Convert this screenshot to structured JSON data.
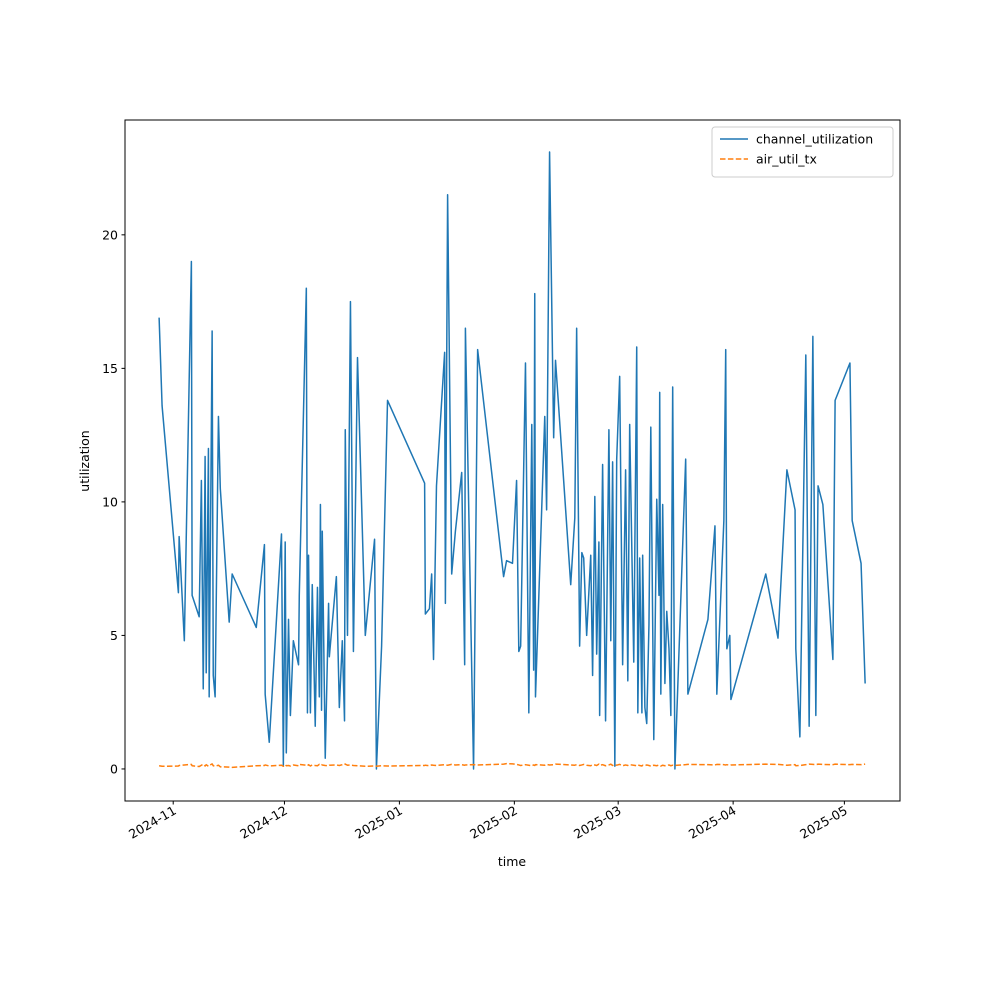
{
  "chart_data": {
    "type": "line",
    "x_label": "time",
    "y_label": "utilization",
    "x": [
      20024.2,
      20025.0,
      20029.4,
      20029.6,
      20031.0,
      20032.9,
      20033.1,
      20035.0,
      20035.6,
      20036.1,
      20036.6,
      20036.9,
      20037.5,
      20037.7,
      20038.5,
      20038.8,
      20039.3,
      20040.2,
      20040.7,
      20043.1,
      20043.9,
      20050.4,
      20052.6,
      20052.8,
      20053.9,
      20057.2,
      20057.7,
      20058.2,
      20058.5,
      20059.1,
      20059.6,
      20060.4,
      20061.8,
      20062.0,
      20063.9,
      20064.2,
      20064.5,
      20065.0,
      20065.5,
      20066.3,
      20066.9,
      20067.4,
      20067.7,
      20068.0,
      20068.2,
      20069.0,
      20069.9,
      20070.1,
      20072.0,
      20072.8,
      20073.6,
      20074.2,
      20074.4,
      20075.0,
      20075.8,
      20076.6,
      20077.7,
      20079.8,
      20082.3,
      20082.8,
      20084.2,
      20085.8,
      20095.8,
      20096.0,
      20097.1,
      20097.7,
      20098.2,
      20099.0,
      20101.2,
      20101.4,
      20102.0,
      20103.1,
      20104.1,
      20105.8,
      20106.6,
      20106.8,
      20109.0,
      20110.1,
      20117.1,
      20117.9,
      20119.5,
      20120.6,
      20121.2,
      20121.7,
      20123.0,
      20123.9,
      20124.7,
      20125.2,
      20125.5,
      20125.7,
      20128.2,
      20128.7,
      20129.5,
      20130.6,
      20131.1,
      20135.2,
      20136.3,
      20136.8,
      20137.6,
      20138.2,
      20138.7,
      20139.5,
      20140.6,
      20141.1,
      20141.7,
      20142.2,
      20142.8,
      20143.0,
      20143.8,
      20144.6,
      20145.5,
      20146.0,
      20146.5,
      20147.1,
      20147.6,
      20148.4,
      20149.2,
      20150.0,
      20150.6,
      20151.1,
      20152.2,
      20153.0,
      20153.3,
      20153.8,
      20154.4,
      20154.6,
      20155.2,
      20155.7,
      20156.3,
      20156.8,
      20157.6,
      20158.4,
      20159.0,
      20159.2,
      20159.5,
      20160.0,
      20160.6,
      20161.1,
      20161.7,
      20162.2,
      20162.7,
      20163.3,
      20166.2,
      20166.8,
      20172.2,
      20174.1,
      20174.6,
      20176.5,
      20177.0,
      20177.3,
      20178.1,
      20178.4,
      20187.8,
      20191.1,
      20193.5,
      20195.7,
      20195.9,
      20197.0,
      20198.6,
      20199.5,
      20200.5,
      20201.3,
      20201.9,
      20203.2,
      20205.9,
      20206.5,
      20210.5,
      20211.1,
      20213.5,
      20214.6
    ],
    "series": [
      {
        "name": "channel_utilization",
        "color": "#1f77b4",
        "linestyle": "solid",
        "values": [
          16.9,
          13.6,
          6.6,
          8.7,
          4.8,
          19.0,
          6.5,
          5.7,
          10.8,
          3.0,
          11.7,
          3.6,
          12.0,
          2.7,
          16.4,
          3.5,
          2.7,
          13.2,
          10.5,
          5.5,
          7.3,
          5.3,
          8.4,
          2.8,
          1.0,
          8.8,
          0.1,
          8.5,
          0.6,
          5.6,
          2.0,
          4.8,
          3.9,
          6.5,
          18.0,
          2.1,
          8.0,
          2.1,
          6.9,
          1.6,
          6.8,
          2.7,
          9.9,
          2.2,
          8.9,
          0.4,
          6.2,
          4.2,
          7.2,
          2.3,
          4.8,
          1.8,
          12.7,
          5.0,
          17.5,
          4.4,
          15.4,
          5.0,
          8.6,
          0.0,
          4.6,
          13.8,
          10.7,
          5.8,
          6.0,
          7.3,
          4.1,
          10.6,
          15.6,
          6.2,
          21.5,
          7.3,
          8.9,
          11.1,
          3.9,
          16.5,
          0.0,
          15.7,
          7.2,
          7.8,
          7.7,
          10.8,
          4.4,
          4.6,
          15.2,
          2.1,
          12.9,
          3.7,
          17.8,
          2.7,
          13.2,
          9.7,
          23.1,
          12.4,
          15.3,
          6.9,
          9.4,
          16.5,
          4.6,
          8.1,
          7.9,
          5.0,
          8.0,
          3.5,
          10.2,
          4.3,
          8.5,
          2.0,
          11.4,
          1.8,
          12.7,
          4.8,
          11.5,
          0.1,
          11.6,
          14.7,
          3.9,
          11.2,
          3.3,
          12.9,
          4.0,
          15.8,
          2.1,
          7.9,
          2.1,
          8.0,
          2.3,
          1.7,
          5.4,
          12.8,
          1.1,
          10.1,
          6.5,
          14.1,
          2.8,
          9.9,
          3.2,
          5.9,
          4.5,
          2.0,
          14.3,
          0.0,
          11.6,
          2.8,
          5.6,
          9.1,
          2.8,
          9.3,
          15.7,
          4.5,
          5.0,
          2.6,
          7.3,
          4.9,
          11.2,
          9.7,
          4.5,
          1.2,
          15.5,
          1.6,
          16.2,
          2.0,
          10.6,
          9.9,
          4.1,
          13.8,
          15.2,
          9.3,
          7.7,
          3.2
        ]
      },
      {
        "name": "air_util_tx",
        "color": "#ff7f0e",
        "linestyle": "dashed",
        "values": [
          0.12,
          0.1,
          0.11,
          0.13,
          0.15,
          0.17,
          0.12,
          0.09,
          0.14,
          0.18,
          0.11,
          0.16,
          0.1,
          0.13,
          0.19,
          0.12,
          0.1,
          0.14,
          0.08,
          0.07,
          0.06,
          0.12,
          0.13,
          0.15,
          0.11,
          0.14,
          0.1,
          0.16,
          0.12,
          0.13,
          0.11,
          0.15,
          0.12,
          0.17,
          0.14,
          0.12,
          0.16,
          0.11,
          0.15,
          0.13,
          0.12,
          0.17,
          0.14,
          0.16,
          0.15,
          0.13,
          0.12,
          0.14,
          0.15,
          0.13,
          0.16,
          0.2,
          0.18,
          0.14,
          0.15,
          0.13,
          0.12,
          0.1,
          0.11,
          0.1,
          0.12,
          0.11,
          0.13,
          0.14,
          0.12,
          0.15,
          0.14,
          0.13,
          0.16,
          0.15,
          0.14,
          0.17,
          0.15,
          0.16,
          0.14,
          0.15,
          0.16,
          0.15,
          0.18,
          0.2,
          0.19,
          0.17,
          0.15,
          0.13,
          0.16,
          0.14,
          0.12,
          0.15,
          0.13,
          0.16,
          0.14,
          0.17,
          0.15,
          0.16,
          0.18,
          0.15,
          0.14,
          0.16,
          0.13,
          0.15,
          0.17,
          0.14,
          0.12,
          0.16,
          0.15,
          0.13,
          0.18,
          0.14,
          0.16,
          0.12,
          0.15,
          0.18,
          0.13,
          0.16,
          0.14,
          0.17,
          0.12,
          0.15,
          0.13,
          0.16,
          0.14,
          0.12,
          0.15,
          0.13,
          0.11,
          0.14,
          0.12,
          0.15,
          0.13,
          0.1,
          0.14,
          0.12,
          0.15,
          0.13,
          0.11,
          0.14,
          0.12,
          0.13,
          0.15,
          0.12,
          0.14,
          0.13,
          0.16,
          0.17,
          0.16,
          0.15,
          0.17,
          0.16,
          0.15,
          0.16,
          0.14,
          0.15,
          0.18,
          0.17,
          0.14,
          0.16,
          0.12,
          0.13,
          0.16,
          0.18,
          0.17,
          0.16,
          0.18,
          0.17,
          0.16,
          0.18,
          0.16,
          0.17,
          0.16,
          0.18
        ]
      }
    ],
    "xlim": [
      20015,
      20224
    ],
    "xticks": [
      {
        "value": 20028,
        "label": "2024-11"
      },
      {
        "value": 20058,
        "label": "2024-12"
      },
      {
        "value": 20089,
        "label": "2025-01"
      },
      {
        "value": 20120,
        "label": "2025-02"
      },
      {
        "value": 20148,
        "label": "2025-03"
      },
      {
        "value": 20179,
        "label": "2025-04"
      },
      {
        "value": 20209,
        "label": "2025-05"
      }
    ],
    "ylim": [
      -1.2,
      24.3
    ],
    "yticks": [
      0,
      5,
      10,
      15,
      20
    ],
    "legend": "upper right",
    "grid": false
  }
}
